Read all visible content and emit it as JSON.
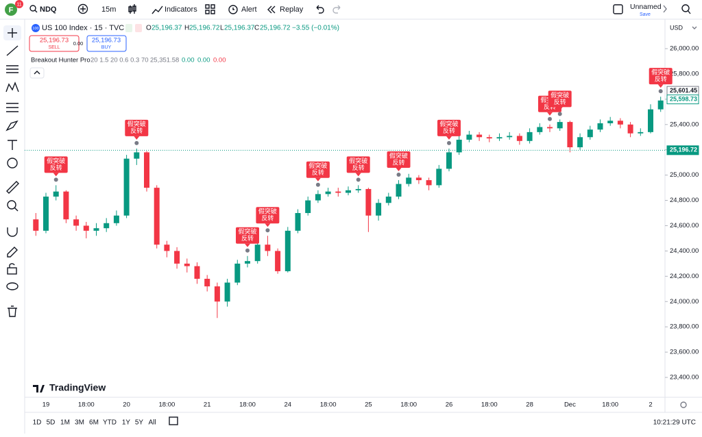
{
  "toolbar": {
    "avatar": "F",
    "badge": "11",
    "symbol": "NDQ",
    "interval": "15m",
    "indicators": "Indicators",
    "alert": "Alert",
    "replay": "Replay",
    "layout_name": "Unnamed",
    "save": "Save"
  },
  "legend": {
    "badge": "100",
    "symbol": "US 100 Index · 15 · TVC",
    "o_label": "O",
    "open": "25,196.37",
    "h_label": "H",
    "high": "25,196.72",
    "l_label": "L",
    "low": "25,196.37",
    "c_label": "C",
    "close": "25,196.72",
    "change": "−3.55 (−0.01%)"
  },
  "trade": {
    "sell_price": "25,196.73",
    "sell": "SELL",
    "spread": "0.00",
    "buy_price": "25,196.73",
    "buy": "BUY"
  },
  "indicator": {
    "name": "Breakout Hunter Pro",
    "params": "20 1.5 20 0.6 0.3 70",
    "v1": "25,351.58",
    "v2": "0.00",
    "v3": "0.00",
    "v4": "0.00"
  },
  "logo": "TradingView",
  "currency": "USD",
  "ranges": [
    "1D",
    "5D",
    "1M",
    "3M",
    "6M",
    "YTD",
    "1Y",
    "5Y",
    "All"
  ],
  "clock": "10:21:29 UTC",
  "chart_data": {
    "type": "candlestick",
    "up_color": "#089981",
    "down_color": "#f23645",
    "grid": false,
    "categories": [
      null,
      "19",
      null,
      null,
      null,
      "18:00",
      null,
      null,
      null,
      "20",
      null,
      null,
      null,
      "18:00",
      null,
      null,
      null,
      "21",
      null,
      null,
      null,
      "18:00",
      null,
      null,
      null,
      "24",
      null,
      null,
      null,
      "18:00",
      null,
      null,
      null,
      "25",
      null,
      null,
      null,
      "18:00",
      null,
      null,
      null,
      "26",
      null,
      null,
      null,
      "18:00",
      null,
      null,
      null,
      "28",
      null,
      null,
      null,
      "Dec",
      null,
      null,
      null,
      "18:00",
      null,
      null,
      null,
      "2",
      null
    ],
    "open": [
      24650,
      24560,
      24830,
      24870,
      24650,
      24600,
      24560,
      24580,
      24620,
      24680,
      25130,
      25180,
      24900,
      24450,
      24400,
      24300,
      24280,
      24180,
      24120,
      24000,
      24150,
      24300,
      24320,
      24450,
      24400,
      24240,
      24560,
      24700,
      24800,
      24850,
      24870,
      24860,
      24880,
      24890,
      24680,
      24780,
      24830,
      24930,
      24980,
      24960,
      24920,
      25050,
      25180,
      25280,
      25320,
      25300,
      25290,
      25300,
      25310,
      25270,
      25340,
      25380,
      25370,
      25420,
      25220,
      25300,
      25360,
      25410,
      25430,
      25400,
      25330,
      25340,
      25520
    ],
    "high": [
      24700,
      24860,
      24920,
      24880,
      24680,
      24630,
      24620,
      24660,
      24720,
      25160,
      25210,
      25190,
      24920,
      24480,
      24430,
      24340,
      24310,
      24210,
      24150,
      24180,
      24330,
      24360,
      24480,
      24520,
      24420,
      24590,
      24730,
      24830,
      24880,
      24900,
      24900,
      24910,
      24920,
      24900,
      24810,
      24860,
      24960,
      25010,
      25000,
      24980,
      25080,
      25210,
      25310,
      25350,
      25340,
      25320,
      25330,
      25340,
      25330,
      25370,
      25410,
      25400,
      25440,
      25430,
      25330,
      25390,
      25440,
      25460,
      25450,
      25420,
      25370,
      25560,
      25620
    ],
    "low": [
      24520,
      24540,
      24800,
      24620,
      24560,
      24500,
      24520,
      24550,
      24600,
      24660,
      25080,
      24870,
      24420,
      24350,
      24260,
      24230,
      24140,
      24080,
      23870,
      23960,
      24130,
      24270,
      24300,
      24360,
      24220,
      24230,
      24540,
      24680,
      24780,
      24830,
      24830,
      24840,
      24860,
      24550,
      24640,
      24760,
      24810,
      24910,
      24930,
      24880,
      24900,
      25030,
      25160,
      25260,
      25270,
      25260,
      25270,
      25280,
      25240,
      25250,
      25320,
      25340,
      25350,
      25180,
      25200,
      25280,
      25340,
      25390,
      25370,
      25300,
      25310,
      25330,
      25500
    ],
    "close": [
      24560,
      24830,
      24870,
      24650,
      24600,
      24560,
      24580,
      24620,
      24680,
      25130,
      25180,
      24900,
      24450,
      24400,
      24300,
      24280,
      24180,
      24120,
      24000,
      24150,
      24300,
      24320,
      24450,
      24400,
      24240,
      24560,
      24700,
      24800,
      24850,
      24870,
      24860,
      24880,
      24890,
      24680,
      24780,
      24830,
      24930,
      24980,
      24960,
      24920,
      25050,
      25180,
      25280,
      25320,
      25300,
      25290,
      25300,
      25310,
      25270,
      25340,
      25380,
      25370,
      25420,
      25220,
      25300,
      25360,
      25410,
      25430,
      25400,
      25330,
      25340,
      25520,
      25590
    ],
    "ylim": [
      23243,
      26206
    ],
    "yticks": [
      {
        "value": 23400,
        "label": "23,400.00"
      },
      {
        "value": 23600,
        "label": "23,600.00"
      },
      {
        "value": 23800,
        "label": "23,800.00"
      },
      {
        "value": 24000,
        "label": "24,000.00"
      },
      {
        "value": 24200,
        "label": "24,200.00"
      },
      {
        "value": 24400,
        "label": "24,400.00"
      },
      {
        "value": 24600,
        "label": "24,600.00"
      },
      {
        "value": 24800,
        "label": "24,800.00"
      },
      {
        "value": 25000,
        "label": "25,000.00"
      },
      {
        "value": 25200,
        "label": "25,200.00"
      },
      {
        "value": 25400,
        "label": "25,400.00"
      },
      {
        "value": 25600,
        "label": "25,600.00"
      },
      {
        "value": 25800,
        "label": "25,800.00"
      },
      {
        "value": 26000,
        "label": "26,000.00"
      }
    ],
    "price_labels": [
      {
        "value": 25601.45,
        "label": "25,601.45"
      },
      {
        "value": 25598.73,
        "label": "25,598.73"
      },
      {
        "value": 25196.72,
        "label": "25,196.72"
      }
    ],
    "annotations": [
      {
        "line1": "假突破",
        "line2": "反转"
      },
      {
        "line1": "假突破",
        "line2": "反转"
      },
      {
        "line1": "假突破",
        "line2": "反转"
      },
      {
        "line1": "假突破",
        "line2": "反转"
      },
      {
        "line1": "假突破",
        "line2": "反转"
      },
      {
        "line1": "假突破",
        "line2": "反转"
      },
      {
        "line1": "假突破",
        "line2": "反转"
      },
      {
        "line1": "假突破",
        "line2": "反转"
      },
      {
        "line1": "假突破",
        "line2": "反转"
      },
      {
        "line1": "假突破",
        "line2": "反转"
      },
      {
        "line1": "假突破",
        "line2": "反转"
      }
    ]
  }
}
